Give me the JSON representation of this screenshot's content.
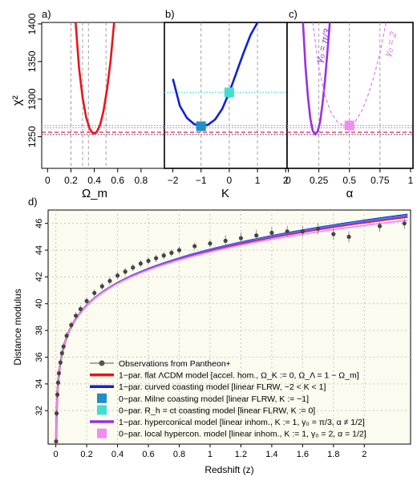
{
  "chart_data": [
    {
      "panel": "a)",
      "type": "line",
      "xlabel": "Ω_m",
      "ylabel": "χ²",
      "xlim": [
        -0.05,
        1.0
      ],
      "ylim": [
        1208,
        1402
      ],
      "x_ticks": [
        "0",
        "0.2",
        "0.4",
        "0.6",
        "0.8"
      ],
      "x_tick_values": [
        0,
        0.2,
        0.4,
        0.6,
        0.8
      ],
      "y_ticks": [
        "1250",
        "1300",
        "1350",
        "1400"
      ],
      "y_tick_values": [
        1250,
        1300,
        1350,
        1400
      ],
      "vlines": [
        0.2,
        0.3,
        0.35,
        0.5
      ],
      "hlines": [
        {
          "y": 1256,
          "color": "#b03060",
          "style": "dashed"
        },
        {
          "y": 1253,
          "color": "#b03060",
          "style": "dotted"
        },
        {
          "y": 1262,
          "color": "#d17fd1",
          "style": "dotted"
        },
        {
          "y": 1265,
          "color": "#d17fd1",
          "style": "dotted"
        }
      ],
      "series": [
        {
          "color": "#e8151b",
          "dashed": false,
          "x": [
            0.24,
            0.27,
            0.3,
            0.33,
            0.36,
            0.39,
            0.42,
            0.45,
            0.48,
            0.51,
            0.54,
            0.57
          ],
          "y": [
            1402,
            1341,
            1302,
            1276,
            1261,
            1254,
            1256,
            1266,
            1285,
            1314,
            1352,
            1402
          ]
        }
      ]
    },
    {
      "panel": "b)",
      "type": "line",
      "xlabel": "K",
      "xlim": [
        -2.3,
        2.05
      ],
      "ylim": [
        1208,
        1402
      ],
      "x_ticks": [
        "−2",
        "−1",
        "0",
        "1",
        "2"
      ],
      "x_tick_values": [
        -2,
        -1,
        0,
        1,
        2
      ],
      "vlines": [
        -1.0,
        0.0,
        1.0
      ],
      "hlines": [
        {
          "y": 1256,
          "color": "#b03060",
          "style": "dashed"
        },
        {
          "y": 1253,
          "color": "#b03060",
          "style": "dotted"
        },
        {
          "y": 1262,
          "color": "#d17fd1",
          "style": "dotted"
        },
        {
          "y": 1265,
          "color": "#d17fd1",
          "style": "dotted"
        },
        {
          "y": 1309,
          "color": "#40e0d0",
          "style": "dotted"
        }
      ],
      "series": [
        {
          "color": "#1020d8",
          "dashed": false,
          "x": [
            -2.0,
            -1.75,
            -1.5,
            -1.25,
            -1.0,
            -0.75,
            -0.5,
            -0.25,
            0.0,
            0.25,
            0.5,
            0.75,
            1.0
          ],
          "y": [
            1327,
            1291,
            1275,
            1267,
            1264,
            1266,
            1273,
            1287,
            1309,
            1335,
            1361,
            1385,
            1402
          ]
        }
      ],
      "markers": [
        {
          "x": -1.0,
          "y": 1264,
          "color": "#1f8fc8"
        },
        {
          "x": 0.0,
          "y": 1309,
          "color": "#40e0d0"
        }
      ]
    },
    {
      "panel": "c)",
      "type": "line",
      "xlabel": "α",
      "xlim": [
        -0.01,
        1.02
      ],
      "ylim": [
        1208,
        1402
      ],
      "x_ticks": [
        "0",
        "0.25",
        "0.5",
        "0.75",
        "1"
      ],
      "x_tick_values": [
        0,
        0.25,
        0.5,
        0.75,
        1.0
      ],
      "vlines": [
        0.25,
        0.5,
        0.75
      ],
      "hlines": [
        {
          "y": 1256,
          "color": "#b03060",
          "style": "dashed"
        },
        {
          "y": 1253,
          "color": "#b03060",
          "style": "dotted"
        },
        {
          "y": 1262,
          "color": "#d17fd1",
          "style": "dotted"
        },
        {
          "y": 1265,
          "color": "#d17fd1",
          "style": "dotted"
        }
      ],
      "series": [
        {
          "color": "#9b30e0",
          "dashed": false,
          "label": "γ₀ = π/3",
          "x": [
            0.12,
            0.14,
            0.16,
            0.18,
            0.2,
            0.22,
            0.24,
            0.26,
            0.28,
            0.3,
            0.32,
            0.34
          ],
          "y": [
            1402,
            1344,
            1304,
            1274,
            1258,
            1253,
            1257,
            1270,
            1294,
            1325,
            1363,
            1402
          ]
        },
        {
          "color": "#e07be0",
          "dashed": true,
          "label": "γ₀ = 2",
          "x": [
            0.2,
            0.25,
            0.3,
            0.35,
            0.4,
            0.45,
            0.5,
            0.55,
            0.6,
            0.65,
            0.7,
            0.75,
            0.8,
            0.85
          ],
          "y": [
            1402,
            1341,
            1304,
            1282,
            1270,
            1265,
            1265,
            1271,
            1284,
            1304,
            1330,
            1361,
            1402,
            1420
          ]
        }
      ],
      "markers": [
        {
          "x": 0.5,
          "y": 1265,
          "color": "#f08cf0"
        }
      ]
    },
    {
      "panel": "d)",
      "type": "scatter",
      "xlabel": "Redshift (z)",
      "ylabel": "Distance modulus",
      "xlim": [
        -0.05,
        2.3
      ],
      "ylim": [
        29.5,
        47
      ],
      "x_ticks": [
        "0",
        "0.2",
        "0.4",
        "0.6",
        "0.8",
        "1",
        "1.2",
        "1.4",
        "1.6",
        "1.8",
        "2"
      ],
      "x_tick_values": [
        0,
        0.2,
        0.4,
        0.6,
        0.8,
        1.0,
        1.2,
        1.4,
        1.6,
        1.8,
        2.0
      ],
      "y_ticks": [
        "32",
        "34",
        "36",
        "38",
        "40",
        "42",
        "44",
        "46"
      ],
      "y_tick_values": [
        32,
        34,
        36,
        38,
        40,
        42,
        44,
        46
      ],
      "legend": [
        {
          "text": "Observations from Pantheon+",
          "kind": "points",
          "color": "#555555"
        },
        {
          "text": "1−par. flat ΛCDM model [accel. hom.,  Ω_K := 0, Ω_Λ = 1 − Ω_m]",
          "kind": "line",
          "color": "#e8151b"
        },
        {
          "text": "1−par. curved coasting model [linear FLRW, −2 < K < 1]",
          "kind": "line",
          "color": "#1020d8"
        },
        {
          "text": "0−par. Milne coasting model [linear FLRW, K := −1]",
          "kind": "square",
          "color": "#1f8fc8"
        },
        {
          "text": "0−par. R_h = ct coasting model [linear FLRW, K := 0]",
          "kind": "square",
          "color": "#40e0d0"
        },
        {
          "text": "1−par. hyperconical model [linear inhom.,  K := 1, γ₀ = π/3, α ≠ 1/2]",
          "kind": "line",
          "color": "#9b30e0"
        },
        {
          "text": "0−par. local hypercon. model [linear inhom.,  K := 1, γ₀ = 2, α = 1/2]",
          "kind": "square",
          "color": "#f08cf0"
        }
      ],
      "model_curves": [
        {
          "name": "lcdm",
          "color": "#e8151b",
          "offset": 0.0
        },
        {
          "name": "curved",
          "color": "#1020d8",
          "offset": 0.18
        },
        {
          "name": "milne",
          "color": "#1f8fc8",
          "offset": 0.12
        },
        {
          "name": "rh",
          "color": "#40e0d0",
          "offset": 0.05
        },
        {
          "name": "hyperconical",
          "color": "#9b30e0",
          "offset": 0.03
        },
        {
          "name": "local-hypercon",
          "color": "#f08cf0",
          "offset": -0.25
        }
      ],
      "observations_sample": {
        "z": [
          0.002,
          0.005,
          0.01,
          0.015,
          0.02,
          0.03,
          0.04,
          0.05,
          0.07,
          0.1,
          0.13,
          0.16,
          0.2,
          0.25,
          0.3,
          0.35,
          0.4,
          0.45,
          0.5,
          0.55,
          0.6,
          0.65,
          0.7,
          0.75,
          0.8,
          0.9,
          1.0,
          1.1,
          1.2,
          1.3,
          1.4,
          1.5,
          1.6,
          1.7,
          1.8,
          1.9,
          2.1,
          2.26
        ],
        "mu": [
          29.7,
          31.8,
          33.2,
          34.1,
          34.8,
          35.6,
          36.3,
          36.8,
          37.6,
          38.4,
          39.1,
          39.6,
          40.2,
          40.8,
          41.3,
          41.7,
          42.1,
          42.4,
          42.7,
          43.0,
          43.2,
          43.4,
          43.6,
          43.8,
          44.0,
          44.3,
          44.5,
          44.7,
          44.9,
          45.1,
          45.3,
          45.4,
          45.4,
          45.6,
          45.2,
          45.0,
          45.8,
          46.0
        ]
      }
    }
  ]
}
